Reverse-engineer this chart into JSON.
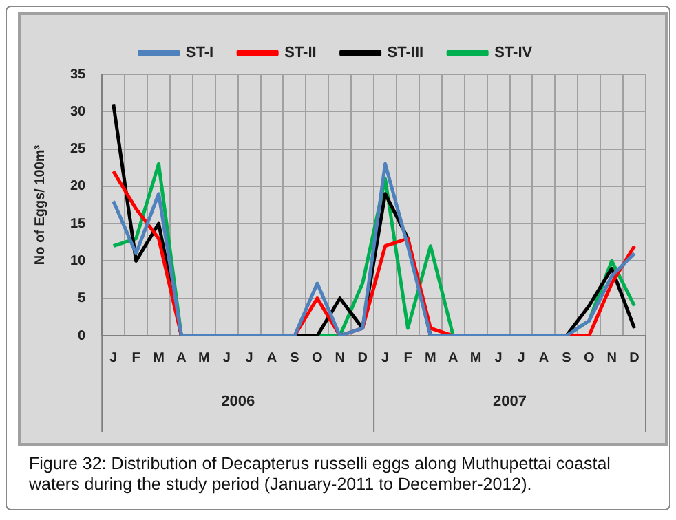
{
  "chart_data": {
    "type": "line",
    "title": "Figure 32: Distribution of Decapterus russelli eggs along Muthupettai coastal waters during the study period (January-2011 to December-2012).",
    "ylabel": "No of Eggs/ 100m³",
    "categories": [
      "J",
      "F",
      "M",
      "A",
      "M",
      "J",
      "J",
      "A",
      "S",
      "O",
      "N",
      "D",
      "J",
      "F",
      "M",
      "A",
      "M",
      "J",
      "J",
      "A",
      "S",
      "O",
      "N",
      "D"
    ],
    "annotations": [
      "2006",
      "2007"
    ],
    "series": [
      {
        "name": "ST-I",
        "color": "#4f81bd",
        "values": [
          18,
          11,
          19,
          0,
          0,
          0,
          0,
          0,
          0,
          7,
          0,
          1,
          23,
          12,
          0,
          0,
          0,
          0,
          0,
          0,
          0,
          2,
          8,
          11
        ]
      },
      {
        "name": "ST-II",
        "color": "#ff0000",
        "values": [
          22,
          17,
          13,
          0,
          0,
          0,
          0,
          0,
          0,
          5,
          0,
          1,
          12,
          13,
          1,
          0,
          0,
          0,
          0,
          0,
          0,
          0,
          7,
          12
        ]
      },
      {
        "name": "ST-III",
        "color": "#000000",
        "values": [
          31,
          10,
          15,
          0,
          0,
          0,
          0,
          0,
          0,
          0,
          5,
          1,
          19,
          13,
          0,
          0,
          0,
          0,
          0,
          0,
          0,
          4,
          9,
          1
        ]
      },
      {
        "name": "ST-IV",
        "color": "#00b050",
        "values": [
          12,
          13,
          23,
          0,
          0,
          0,
          0,
          0,
          0,
          0,
          0,
          7,
          21,
          1,
          12,
          0,
          0,
          0,
          0,
          0,
          0,
          2,
          10,
          4
        ]
      }
    ],
    "ylim": [
      0,
      35
    ],
    "yticks": [
      0,
      5,
      10,
      15,
      20,
      25,
      30,
      35
    ],
    "grid": true,
    "legend": "top",
    "marker": "none",
    "line_style": "solid"
  }
}
